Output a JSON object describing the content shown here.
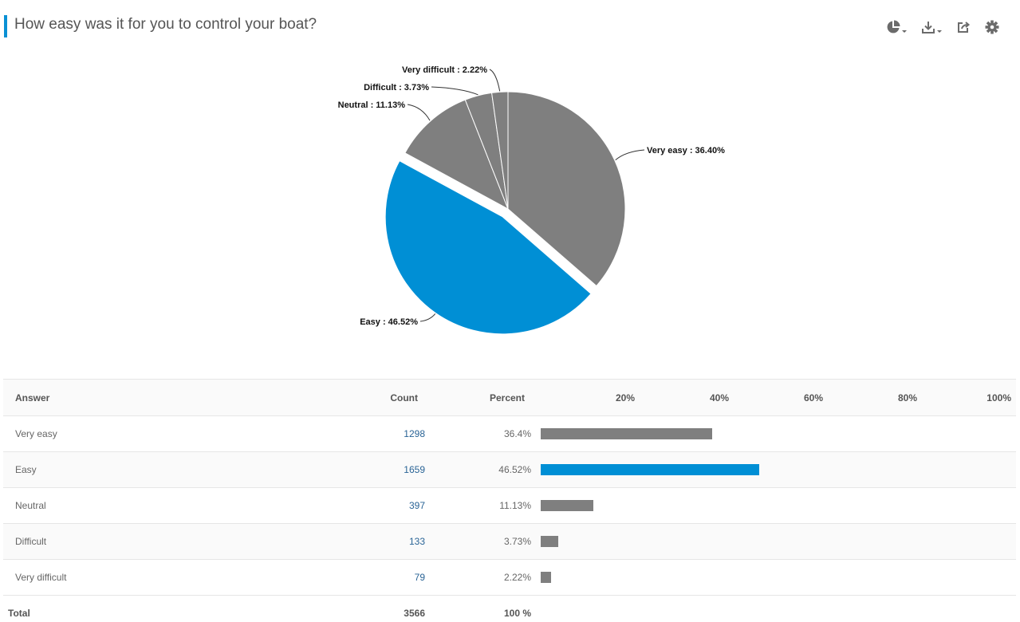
{
  "header": {
    "title": "How easy was it for you to control your boat?",
    "accent_color": "#0a90d4",
    "tools": [
      {
        "icon": "pie-chart-icon",
        "dropdown": true
      },
      {
        "icon": "download-icon",
        "dropdown": true
      },
      {
        "icon": "share-icon",
        "dropdown": false
      },
      {
        "icon": "gear-icon",
        "dropdown": false
      }
    ]
  },
  "chart_data": {
    "type": "pie",
    "slices": [
      {
        "label": "Very easy : 36.40%",
        "name": "Very easy",
        "value": 36.4,
        "color": "#7f7f7f",
        "exploded": false
      },
      {
        "label": "Easy : 46.52%",
        "name": "Easy",
        "value": 46.52,
        "color": "#008fd5",
        "exploded": true
      },
      {
        "label": "Neutral : 11.13%",
        "name": "Neutral",
        "value": 11.13,
        "color": "#7f7f7f",
        "exploded": false
      },
      {
        "label": "Difficult : 3.73%",
        "name": "Difficult",
        "value": 3.73,
        "color": "#7f7f7f",
        "exploded": false
      },
      {
        "label": "Very difficult : 2.22%",
        "name": "Very difficult",
        "value": 2.22,
        "color": "#7f7f7f",
        "exploded": false
      }
    ],
    "start": "top",
    "direction": "clockwise"
  },
  "table": {
    "headers": {
      "answer": "Answer",
      "count": "Count",
      "percent": "Percent",
      "ticks": [
        "20%",
        "40%",
        "60%",
        "80%",
        "100%"
      ]
    },
    "rows": [
      {
        "answer": "Very easy",
        "count": "1298",
        "percent": "36.4%",
        "value": 36.4,
        "color": "#7f7f7f"
      },
      {
        "answer": "Easy",
        "count": "1659",
        "percent": "46.52%",
        "value": 46.52,
        "color": "#008fd5"
      },
      {
        "answer": "Neutral",
        "count": "397",
        "percent": "11.13%",
        "value": 11.13,
        "color": "#7f7f7f"
      },
      {
        "answer": "Difficult",
        "count": "133",
        "percent": "3.73%",
        "value": 3.73,
        "color": "#7f7f7f"
      },
      {
        "answer": "Very difficult",
        "count": "79",
        "percent": "2.22%",
        "value": 2.22,
        "color": "#7f7f7f"
      }
    ],
    "total": {
      "label": "Total",
      "count": "3566",
      "percent": "100 %"
    }
  }
}
